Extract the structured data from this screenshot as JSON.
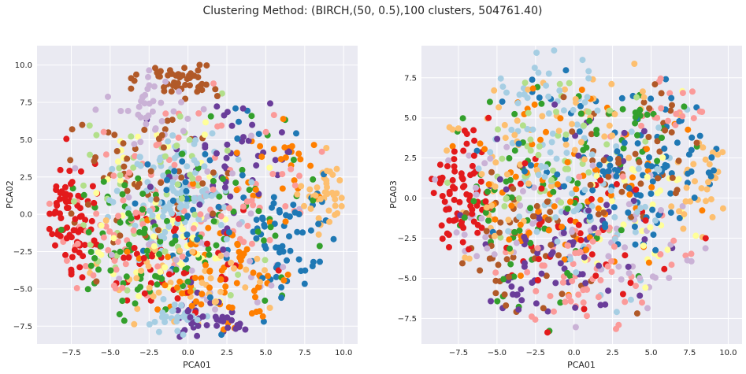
{
  "figure": {
    "title": "Clustering Method: (BIRCH,(50, 0.5),100 clusters, 504761.40)"
  },
  "palette": [
    "#a6cee3",
    "#1f78b4",
    "#b2df8a",
    "#33a02c",
    "#fb9a99",
    "#e31a1c",
    "#fdbf6f",
    "#ff7f00",
    "#cab2d6",
    "#6a3d9a",
    "#ffff99",
    "#b15928"
  ],
  "chart_data": [
    {
      "type": "scatter",
      "xlabel": "PCA01",
      "ylabel": "PCA02",
      "xlim": [
        -9.7,
        10.9
      ],
      "ylim": [
        -8.7,
        11.3
      ],
      "xticks": [
        -7.5,
        -5.0,
        -2.5,
        0.0,
        2.5,
        5.0,
        7.5,
        10.0
      ],
      "yticks": [
        -7.5,
        -5.0,
        -2.5,
        0.0,
        2.5,
        5.0,
        7.5,
        10.0
      ],
      "xtick_labels": [
        "−7.5",
        "−5.0",
        "−2.5",
        "0.0",
        "2.5",
        "5.0",
        "7.5",
        "10.0"
      ],
      "ytick_labels": [
        "−7.5",
        "−5.0",
        "−2.5",
        "0.0",
        "2.5",
        "5.0",
        "7.5",
        "10.0"
      ],
      "grid": true,
      "clusters": 100,
      "groups": [
        {
          "color": "#e31a1c",
          "cx": -7.8,
          "cy": 0.0,
          "sx": 0.9,
          "sy": 2.0,
          "n": 80
        },
        {
          "color": "#b15928",
          "cx": -0.5,
          "cy": 9.2,
          "sx": 1.3,
          "sy": 0.7,
          "n": 55
        },
        {
          "color": "#1f78b4",
          "cx": 6.5,
          "cy": -1.5,
          "sx": 1.4,
          "sy": 2.2,
          "n": 55
        },
        {
          "color": "#fdbf6f",
          "cx": 9.0,
          "cy": 1.2,
          "sx": 0.8,
          "sy": 1.2,
          "n": 45
        },
        {
          "color": "#a6cee3",
          "cx": -0.5,
          "cy": 1.5,
          "sx": 1.8,
          "sy": 2.0,
          "n": 110
        },
        {
          "color": "#a6cee3",
          "cx": -1.0,
          "cy": -7.0,
          "sx": 1.2,
          "sy": 0.5,
          "n": 30
        },
        {
          "color": "#6a3d9a",
          "cx": 1.8,
          "cy": -6.8,
          "sx": 1.5,
          "sy": 0.8,
          "n": 40
        },
        {
          "color": "#cab2d6",
          "cx": -2.5,
          "cy": 7.0,
          "sx": 2.0,
          "sy": 1.2,
          "n": 40
        },
        {
          "color": "#ff7f00",
          "cx": 2.0,
          "cy": -4.0,
          "sx": 2.5,
          "sy": 2.0,
          "n": 80
        },
        {
          "color": "#33a02c",
          "cx": -3.5,
          "cy": -2.0,
          "sx": 2.5,
          "sy": 2.5,
          "n": 80
        },
        {
          "color": "#b2df8a",
          "cx": -2.0,
          "cy": 0.5,
          "sx": 3.0,
          "sy": 3.0,
          "n": 60
        },
        {
          "color": "#fb9a99",
          "cx": 2.0,
          "cy": 2.0,
          "sx": 3.0,
          "sy": 3.0,
          "n": 70
        },
        {
          "color": "#ffff99",
          "cx": -1.5,
          "cy": 0.0,
          "sx": 3.0,
          "sy": 3.0,
          "n": 55
        },
        {
          "color": "#b15928",
          "cx": -3.0,
          "cy": 2.5,
          "sx": 3.0,
          "sy": 2.5,
          "n": 60
        },
        {
          "color": "#6a3d9a",
          "cx": 2.5,
          "cy": 3.5,
          "sx": 2.5,
          "sy": 2.5,
          "n": 55
        },
        {
          "color": "#e31a1c",
          "cx": -2.0,
          "cy": -3.5,
          "sx": 3.0,
          "sy": 2.0,
          "n": 60
        },
        {
          "color": "#1f78b4",
          "cx": 1.0,
          "cy": 0.0,
          "sx": 3.0,
          "sy": 3.0,
          "n": 55
        },
        {
          "color": "#ff7f00",
          "cx": 6.0,
          "cy": 2.5,
          "sx": 2.0,
          "sy": 2.0,
          "n": 30
        },
        {
          "color": "#33a02c",
          "cx": 3.5,
          "cy": 1.0,
          "sx": 2.5,
          "sy": 2.5,
          "n": 45
        },
        {
          "color": "#fdbf6f",
          "cx": -1.0,
          "cy": -4.5,
          "sx": 3.0,
          "sy": 2.0,
          "n": 50
        },
        {
          "color": "#cab2d6",
          "cx": 0.5,
          "cy": -2.0,
          "sx": 3.5,
          "sy": 3.0,
          "n": 45
        },
        {
          "color": "#fb9a99",
          "cx": -5.0,
          "cy": -1.0,
          "sx": 2.0,
          "sy": 2.5,
          "n": 40
        }
      ]
    },
    {
      "type": "scatter",
      "xlabel": "PCA01",
      "ylabel": "PCA03",
      "xlim": [
        -9.9,
        10.9
      ],
      "ylim": [
        -9.1,
        9.5
      ],
      "xticks": [
        -7.5,
        -5.0,
        -2.5,
        0.0,
        2.5,
        5.0,
        7.5,
        10.0
      ],
      "yticks": [
        -7.5,
        -5.0,
        -2.5,
        0.0,
        2.5,
        5.0,
        7.5
      ],
      "xtick_labels": [
        "−7.5",
        "−5.0",
        "−2.5",
        "0.0",
        "2.5",
        "5.0",
        "7.5",
        "10.0"
      ],
      "ytick_labels": [
        "−7.5",
        "−5.0",
        "−2.5",
        "0.0",
        "2.5",
        "5.0",
        "7.5"
      ],
      "grid": true,
      "clusters": 100,
      "groups": [
        {
          "color": "#e31a1c",
          "cx": -7.5,
          "cy": 0.5,
          "sx": 1.0,
          "sy": 2.0,
          "n": 80
        },
        {
          "color": "#1f78b4",
          "cx": 5.5,
          "cy": 2.0,
          "sx": 2.0,
          "sy": 2.2,
          "n": 70
        },
        {
          "color": "#a6cee3",
          "cx": -1.5,
          "cy": 5.0,
          "sx": 2.0,
          "sy": 2.0,
          "n": 55
        },
        {
          "color": "#fdbf6f",
          "cx": 8.5,
          "cy": 1.0,
          "sx": 1.2,
          "sy": 2.0,
          "n": 45
        },
        {
          "color": "#fdbf6f",
          "cx": -5.0,
          "cy": 2.0,
          "sx": 2.0,
          "sy": 2.5,
          "n": 40
        },
        {
          "color": "#fb9a99",
          "cx": 1.0,
          "cy": -4.5,
          "sx": 3.0,
          "sy": 2.0,
          "n": 70
        },
        {
          "color": "#b15928",
          "cx": -4.0,
          "cy": -3.5,
          "sx": 2.5,
          "sy": 2.0,
          "n": 55
        },
        {
          "color": "#33a02c",
          "cx": -3.0,
          "cy": 0.0,
          "sx": 3.0,
          "sy": 3.0,
          "n": 70
        },
        {
          "color": "#6a3d9a",
          "cx": 1.5,
          "cy": -1.0,
          "sx": 3.0,
          "sy": 2.5,
          "n": 60
        },
        {
          "color": "#ff7f00",
          "cx": 0.0,
          "cy": 0.5,
          "sx": 3.5,
          "sy": 3.0,
          "n": 80
        },
        {
          "color": "#cab2d6",
          "cx": 3.0,
          "cy": -3.0,
          "sx": 3.0,
          "sy": 2.5,
          "n": 45
        },
        {
          "color": "#b2df8a",
          "cx": -1.5,
          "cy": 2.5,
          "sx": 3.0,
          "sy": 2.5,
          "n": 50
        },
        {
          "color": "#ffff99",
          "cx": 5.0,
          "cy": -1.0,
          "sx": 3.0,
          "sy": 2.5,
          "n": 40
        },
        {
          "color": "#e31a1c",
          "cx": 0.0,
          "cy": -2.0,
          "sx": 3.0,
          "sy": 3.0,
          "n": 45
        },
        {
          "color": "#1f78b4",
          "cx": 0.5,
          "cy": 1.5,
          "sx": 3.0,
          "sy": 3.0,
          "n": 45
        },
        {
          "color": "#a6cee3",
          "cx": 2.0,
          "cy": -1.0,
          "sx": 3.0,
          "sy": 3.0,
          "n": 50
        },
        {
          "color": "#b15928",
          "cx": 3.5,
          "cy": 2.5,
          "sx": 2.5,
          "sy": 2.5,
          "n": 45
        },
        {
          "color": "#33a02c",
          "cx": 3.5,
          "cy": 4.0,
          "sx": 2.0,
          "sy": 1.5,
          "n": 30
        },
        {
          "color": "#fb9a99",
          "cx": 5.5,
          "cy": 5.5,
          "sx": 1.5,
          "sy": 1.5,
          "n": 25
        },
        {
          "color": "#fdbf6f",
          "cx": 0.5,
          "cy": 5.5,
          "sx": 2.5,
          "sy": 1.5,
          "n": 30
        },
        {
          "color": "#6a3d9a",
          "cx": -2.0,
          "cy": -5.0,
          "sx": 2.0,
          "sy": 1.5,
          "n": 30
        },
        {
          "color": "#cab2d6",
          "cx": -5.5,
          "cy": -1.0,
          "sx": 2.0,
          "sy": 2.0,
          "n": 30
        }
      ]
    }
  ]
}
